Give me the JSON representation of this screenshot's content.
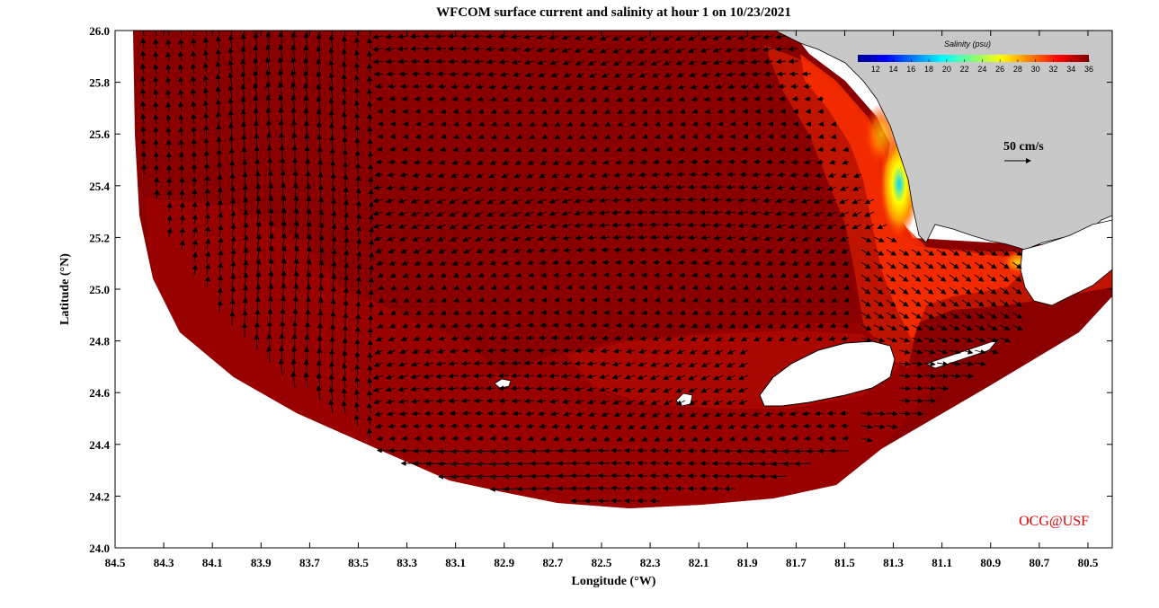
{
  "title": "WFCOM surface current and salinity at hour 1 on 10/23/2021",
  "xaxis": {
    "label": "Longitude (°W)",
    "range": [
      84.5,
      80.4
    ],
    "ticks": [
      "84.5",
      "84.3",
      "84.1",
      "83.9",
      "83.7",
      "83.5",
      "83.3",
      "83.1",
      "82.9",
      "82.7",
      "82.5",
      "82.3",
      "82.1",
      "81.9",
      "81.7",
      "81.5",
      "81.3",
      "81.1",
      "80.9",
      "80.7",
      "80.5"
    ]
  },
  "yaxis": {
    "label": "Latitude (°N)",
    "range": [
      24.0,
      26.0
    ],
    "ticks": [
      "24.0",
      "24.2",
      "24.4",
      "24.6",
      "24.8",
      "25.0",
      "25.2",
      "25.4",
      "25.6",
      "25.8",
      "26.0"
    ]
  },
  "colorbar": {
    "title": "Salinity (psu)",
    "ticks": [
      "12",
      "14",
      "16",
      "18",
      "20",
      "22",
      "24",
      "26",
      "28",
      "30",
      "32",
      "34",
      "36"
    ],
    "range": [
      10,
      36
    ],
    "colormap": "jet"
  },
  "scale_arrow": {
    "label": "50 cm/s"
  },
  "credit": "OCG@USF",
  "colors": {
    "water_dark": "#850000",
    "water_mid": "#a00000",
    "land": "#c8c8c8",
    "credit": "#e00000"
  }
}
